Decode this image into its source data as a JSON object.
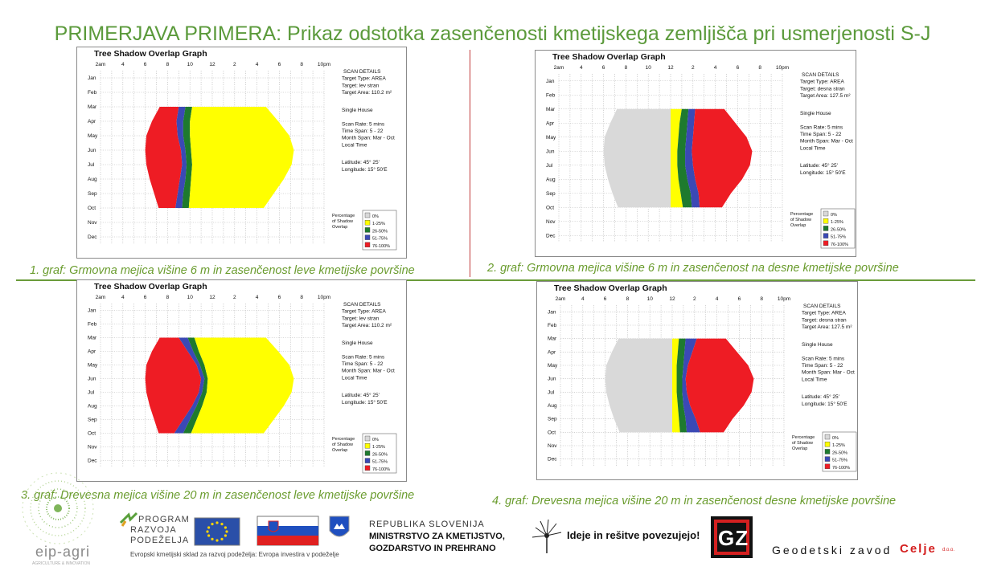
{
  "title": "PRIMERJAVA PRIMERA: Prikaz odstotka zasenčenosti kmetijskega zemljišča pri usmerjenosti S-J",
  "colors": {
    "title": "#5b9a3b",
    "caption": "#6a9c2e",
    "c0": "#d9d9d9",
    "c1": "#ffff00",
    "c2": "#1e7a2e",
    "c3": "#3b49b5",
    "c4": "#ee1c24"
  },
  "common": {
    "graph_title": "Tree Shadow Overlap Graph",
    "x_ticks": [
      "2am",
      "4",
      "6",
      "8",
      "10",
      "12",
      "2",
      "4",
      "6",
      "8",
      "10pm"
    ],
    "months": [
      "Jan",
      "Feb",
      "Mar",
      "Apr",
      "May",
      "Jun",
      "Jul",
      "Aug",
      "Sep",
      "Oct",
      "Nov",
      "Dec"
    ],
    "scan_header": "SCAN DETAILS",
    "target_type": "Target Type: AREA",
    "single_house": "Single House",
    "scan_rate": "Scan Rate: 5 mins",
    "time_span": "Time Span: 5 - 22",
    "month_span": "Month Span: Mar - Oct",
    "local_time": "Local Time",
    "latitude": "Latitude: 45° 25'",
    "longitude": "Longitude: 15° 50'E",
    "legend_title": [
      "Percentage",
      "of Shadow",
      "Overlap"
    ],
    "legend_items": [
      "0%",
      "1-25%",
      "26-50%",
      "51-75%",
      "76-100%"
    ]
  },
  "panels": [
    {
      "caption": "1. graf: Grmovna mejica višine 6 m in zasenčenost leve kmetijske površine",
      "target": "Target: lev stran",
      "area": "Target Area: 110.2 m²"
    },
    {
      "caption": "2. graf: Grmovna mejica višine 6 m in zasenčenost na desne kmetijske površine",
      "target": "Target: desna stran",
      "area": "Target Area: 127.5 m²"
    },
    {
      "caption": "3. graf: Drevesna mejica višine 20 m in zasenčenost leve kmetijske površine",
      "target": "Target: lev stran",
      "area": "Target Area: 110.2 m²"
    },
    {
      "caption": "4. graf: Drevesna mejica višine 20 m in zasenčenost desne kmetijske površine",
      "target": "Target: desna stran",
      "area": "Target Area: 127.5 m²"
    }
  ],
  "chart_data": [
    {
      "type": "area",
      "title": "Tree Shadow Overlap Graph",
      "x_unit": "hour of day",
      "xlim": [
        2,
        22
      ],
      "y_unit": "month",
      "months_shown": [
        "Mar",
        "Apr",
        "May",
        "Jun",
        "Jul",
        "Aug",
        "Sep",
        "Oct"
      ],
      "band_edges_months": [
        "Mar",
        "Apr",
        "May",
        "Jun",
        "Jul",
        "Aug",
        "Sep",
        "Oct"
      ],
      "series": [
        {
          "name": "76-100%",
          "start": [
            7.3,
            6.6,
            6.1,
            6.0,
            6.1,
            6.4,
            6.8,
            7.2
          ],
          "end": [
            9.0,
            8.8,
            8.9,
            9.2,
            9.3,
            9.1,
            8.9,
            8.7
          ]
        },
        {
          "name": "51-75%",
          "start": [
            9.0,
            8.8,
            8.9,
            9.2,
            9.3,
            9.1,
            8.9,
            8.7
          ],
          "end": [
            9.6,
            9.4,
            9.4,
            9.6,
            9.7,
            9.6,
            9.4,
            9.3
          ]
        },
        {
          "name": "26-50%",
          "start": [
            9.6,
            9.4,
            9.4,
            9.6,
            9.7,
            9.6,
            9.4,
            9.3
          ],
          "end": [
            10.2,
            10.0,
            10.0,
            10.1,
            10.2,
            10.1,
            10.0,
            9.9
          ]
        },
        {
          "name": "1-25%",
          "start": [
            10.2,
            10.0,
            10.0,
            10.1,
            10.2,
            10.1,
            10.0,
            9.9
          ],
          "end": [
            16.8,
            17.9,
            18.9,
            19.3,
            19.1,
            18.4,
            17.5,
            16.6
          ]
        }
      ]
    },
    {
      "type": "area",
      "title": "Tree Shadow Overlap Graph",
      "x_unit": "hour of day",
      "xlim": [
        2,
        22
      ],
      "y_unit": "month",
      "months_shown": [
        "Mar",
        "Apr",
        "May",
        "Jun",
        "Jul",
        "Aug",
        "Sep",
        "Oct"
      ],
      "band_edges_months": [
        "Mar",
        "Apr",
        "May",
        "Jun",
        "Jul",
        "Aug",
        "Sep",
        "Oct"
      ],
      "series": [
        {
          "name": "0%",
          "start": [
            7.2,
            6.6,
            6.1,
            6.0,
            6.1,
            6.4,
            6.8,
            7.3
          ],
          "end": [
            12.0,
            12.0,
            12.0,
            12.0,
            12.0,
            12.0,
            12.0,
            12.0
          ]
        },
        {
          "name": "1-25%",
          "start": [
            12.0,
            12.0,
            12.0,
            12.0,
            12.0,
            12.0,
            12.0,
            12.0
          ],
          "end": [
            13.0,
            12.8,
            12.7,
            12.6,
            12.6,
            12.7,
            12.9,
            13.1
          ]
        },
        {
          "name": "26-50%",
          "start": [
            13.0,
            12.8,
            12.7,
            12.6,
            12.6,
            12.7,
            12.9,
            13.1
          ],
          "end": [
            13.6,
            13.5,
            13.4,
            13.3,
            13.3,
            13.5,
            13.8,
            13.9
          ]
        },
        {
          "name": "51-75%",
          "start": [
            13.6,
            13.5,
            13.4,
            13.3,
            13.3,
            13.5,
            13.8,
            13.9
          ],
          "end": [
            14.2,
            14.1,
            14.0,
            13.9,
            14.0,
            14.2,
            14.5,
            14.6
          ]
        },
        {
          "name": "76-100%",
          "start": [
            14.2,
            14.1,
            14.0,
            13.9,
            14.0,
            14.2,
            14.5,
            14.6
          ],
          "end": [
            16.8,
            17.8,
            18.8,
            19.3,
            19.1,
            18.4,
            17.4,
            16.6
          ]
        }
      ]
    },
    {
      "type": "area",
      "title": "Tree Shadow Overlap Graph",
      "x_unit": "hour of day",
      "xlim": [
        2,
        22
      ],
      "y_unit": "month",
      "months_shown": [
        "Mar",
        "Apr",
        "May",
        "Jun",
        "Jul",
        "Aug",
        "Sep",
        "Oct"
      ],
      "band_edges_months": [
        "Mar",
        "Apr",
        "May",
        "Jun",
        "Jul",
        "Aug",
        "Sep",
        "Oct"
      ],
      "series": [
        {
          "name": "76-100%",
          "start": [
            7.3,
            6.6,
            6.1,
            6.0,
            6.1,
            6.4,
            6.8,
            7.2
          ],
          "end": [
            9.0,
            9.8,
            10.6,
            11.0,
            10.8,
            10.2,
            9.4,
            8.6
          ]
        },
        {
          "name": "51-75%",
          "start": [
            9.0,
            9.8,
            10.6,
            11.0,
            10.8,
            10.2,
            9.4,
            8.6
          ],
          "end": [
            9.8,
            10.3,
            10.9,
            11.3,
            11.1,
            10.6,
            10.0,
            9.4
          ]
        },
        {
          "name": "26-50%",
          "start": [
            9.8,
            10.3,
            10.9,
            11.3,
            11.1,
            10.6,
            10.0,
            9.4
          ],
          "end": [
            10.4,
            10.8,
            11.3,
            11.6,
            11.5,
            11.1,
            10.6,
            10.1
          ]
        },
        {
          "name": "1-25%",
          "start": [
            10.4,
            10.8,
            11.3,
            11.6,
            11.5,
            11.1,
            10.6,
            10.1
          ],
          "end": [
            16.8,
            17.9,
            18.9,
            19.3,
            19.1,
            18.4,
            17.5,
            16.6
          ]
        }
      ]
    },
    {
      "type": "area",
      "title": "Tree Shadow Overlap Graph",
      "x_unit": "hour of day",
      "xlim": [
        2,
        22
      ],
      "y_unit": "month",
      "months_shown": [
        "Mar",
        "Apr",
        "May",
        "Jun",
        "Jul",
        "Aug",
        "Sep",
        "Oct"
      ],
      "band_edges_months": [
        "Mar",
        "Apr",
        "May",
        "Jun",
        "Jul",
        "Aug",
        "Sep",
        "Oct"
      ],
      "series": [
        {
          "name": "0%",
          "start": [
            7.2,
            6.6,
            6.1,
            6.0,
            6.1,
            6.4,
            6.8,
            7.3
          ],
          "end": [
            12.0,
            12.0,
            12.0,
            12.0,
            12.0,
            12.0,
            12.0,
            12.0
          ]
        },
        {
          "name": "1-25%",
          "start": [
            12.0,
            12.0,
            12.0,
            12.0,
            12.0,
            12.0,
            12.0,
            12.0
          ],
          "end": [
            12.6,
            12.5,
            12.4,
            12.4,
            12.4,
            12.5,
            12.6,
            12.7
          ]
        },
        {
          "name": "26-50%",
          "start": [
            12.6,
            12.5,
            12.4,
            12.4,
            12.4,
            12.5,
            12.6,
            12.7
          ],
          "end": [
            13.2,
            13.1,
            13.0,
            12.9,
            12.9,
            13.0,
            13.2,
            13.3
          ]
        },
        {
          "name": "51-75%",
          "start": [
            13.2,
            13.1,
            13.0,
            12.9,
            12.9,
            13.0,
            13.2,
            13.3
          ],
          "end": [
            14.2,
            13.8,
            13.4,
            13.2,
            13.3,
            13.6,
            14.1,
            14.5
          ]
        },
        {
          "name": "76-100%",
          "start": [
            14.2,
            13.8,
            13.4,
            13.2,
            13.3,
            13.6,
            14.1,
            14.5
          ],
          "end": [
            16.8,
            17.8,
            18.8,
            19.3,
            19.1,
            18.4,
            17.4,
            16.6
          ]
        }
      ]
    }
  ],
  "footer": {
    "eip_agri": "eip-agri",
    "eip_agri_sub": "AGRICULTURE & INNOVATION",
    "program_lines": [
      "PROGRAM",
      "RAZVOJA",
      "PODEŽELJA"
    ],
    "program_sub": "Evropski kmetijski sklad za razvoj podeželja: Evropa investira v podeželje",
    "ministry_lines": [
      "REPUBLIKA SLOVENIJA",
      "MINISTRSTVO ZA KMETIJSTVO,",
      "GOZDARSTVO IN PREHRANO"
    ],
    "ideje": "Ideje in rešitve povezujejo!",
    "gz_logo": "GZ",
    "gzc_name": "Geodetski zavod",
    "gzc_city": "Celje",
    "gzc_suffix": "d.o.o."
  }
}
